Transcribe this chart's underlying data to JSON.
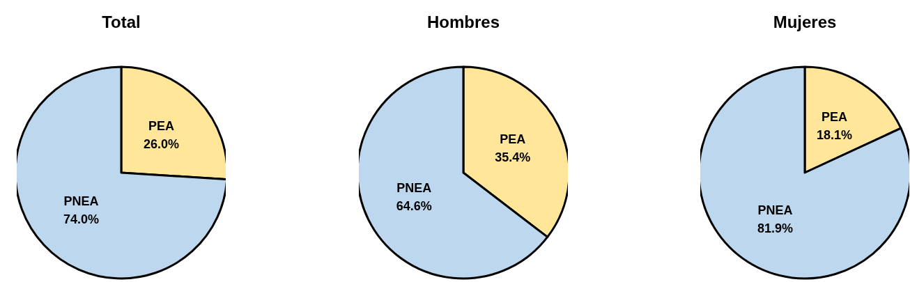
{
  "chart_data": [
    {
      "type": "pie",
      "title": "Total",
      "categories": [
        "PEA",
        "PNEA"
      ],
      "values": [
        26.0,
        74.0
      ],
      "value_labels": [
        "26.0%",
        "74.0%"
      ],
      "colors": [
        "#ffe699",
        "#bdd7ee"
      ]
    },
    {
      "type": "pie",
      "title": "Hombres",
      "categories": [
        "PEA",
        "PNEA"
      ],
      "values": [
        35.4,
        64.6
      ],
      "value_labels": [
        "35.4%",
        "64.6%"
      ],
      "colors": [
        "#ffe699",
        "#bdd7ee"
      ]
    },
    {
      "type": "pie",
      "title": "Mujeres",
      "categories": [
        "PEA",
        "PNEA"
      ],
      "values": [
        18.1,
        81.9
      ],
      "value_labels": [
        "18.1%",
        "81.9%"
      ],
      "colors": [
        "#ffe699",
        "#bdd7ee"
      ]
    }
  ]
}
